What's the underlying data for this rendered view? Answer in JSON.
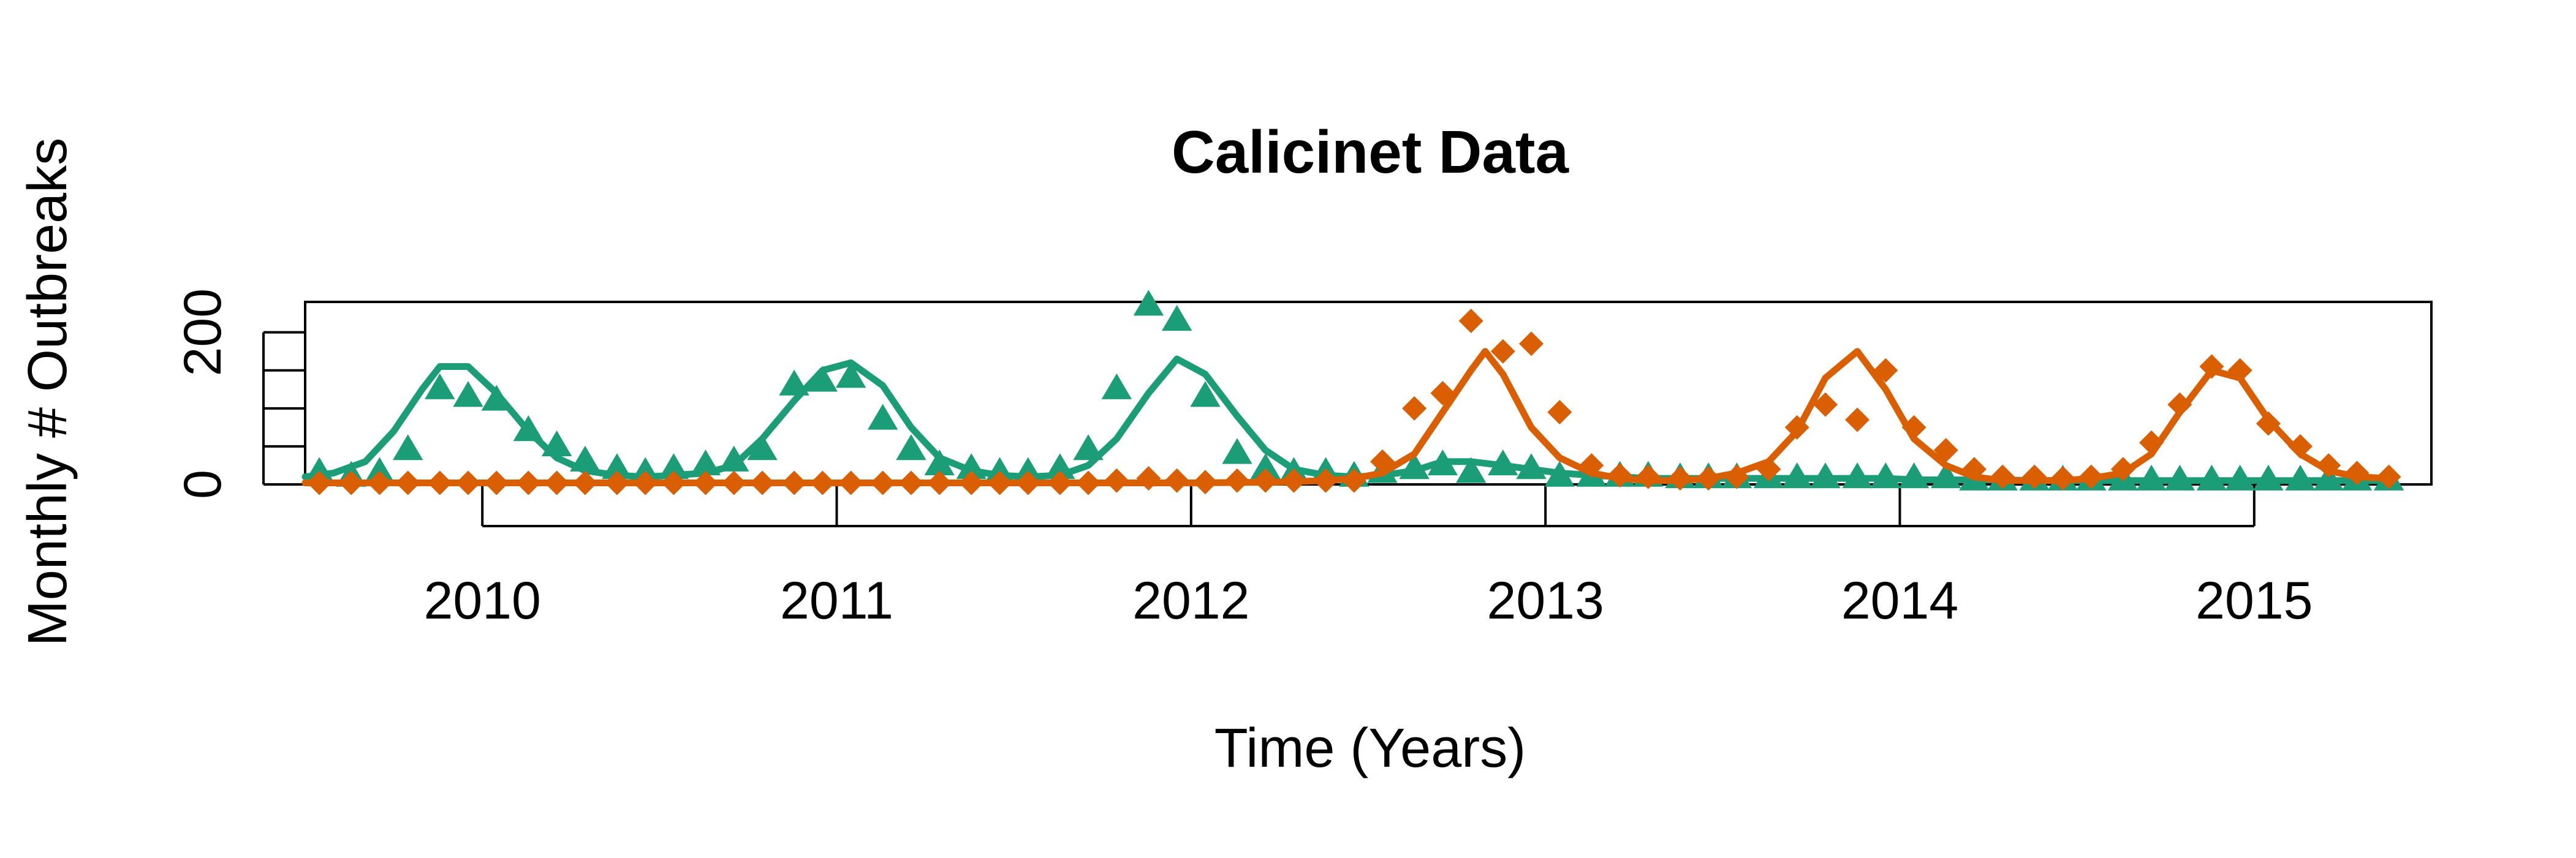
{
  "chart_data": {
    "type": "line",
    "title": "Calicinet Data",
    "xlabel": "Time (Years)",
    "ylabel": "Monthly # Outbreaks",
    "xlim": [
      2009.5,
      2015.5
    ],
    "ylim": [
      0,
      240
    ],
    "x_ticks": [
      2010,
      2011,
      2012,
      2013,
      2014,
      2015
    ],
    "y_ticks": [
      0,
      50,
      100,
      150,
      200
    ],
    "y_tick_labels": [
      "0",
      "",
      "",
      "",
      "200"
    ],
    "grid": false,
    "legend": null,
    "series": [
      {
        "color": "#1b9e77",
        "marker": "triangle",
        "observed": {
          "x": [
            2009.54,
            2009.63,
            2009.71,
            2009.79,
            2009.88,
            2009.96,
            2010.04,
            2010.13,
            2010.21,
            2010.29,
            2010.38,
            2010.46,
            2010.54,
            2010.63,
            2010.71,
            2010.79,
            2010.88,
            2010.96,
            2011.04,
            2011.13,
            2011.21,
            2011.29,
            2011.38,
            2011.46,
            2011.54,
            2011.63,
            2011.71,
            2011.79,
            2011.88,
            2011.96,
            2012.04,
            2012.13,
            2012.21,
            2012.29,
            2012.38,
            2012.46,
            2012.54,
            2012.63,
            2012.71,
            2012.79,
            2012.88,
            2012.96,
            2013.04,
            2013.13,
            2013.21,
            2013.29,
            2013.38,
            2013.46,
            2013.54,
            2013.63,
            2013.71,
            2013.79,
            2013.88,
            2013.96,
            2014.04,
            2014.13,
            2014.21,
            2014.29,
            2014.38,
            2014.46,
            2014.54,
            2014.63,
            2014.71,
            2014.79,
            2014.88,
            2014.96,
            2015.04,
            2015.13,
            2015.21,
            2015.29,
            2015.38
          ],
          "y": [
            15,
            10,
            15,
            45,
            125,
            115,
            110,
            70,
            50,
            30,
            20,
            15,
            20,
            25,
            30,
            45,
            130,
            135,
            140,
            85,
            45,
            25,
            20,
            15,
            15,
            20,
            45,
            125,
            235,
            215,
            115,
            40,
            20,
            15,
            15,
            10,
            15,
            20,
            25,
            15,
            25,
            20,
            10,
            10,
            10,
            10,
            8,
            8,
            8,
            8,
            8,
            8,
            8,
            8,
            8,
            8,
            5,
            5,
            5,
            5,
            5,
            5,
            5,
            5,
            5,
            5,
            5,
            5,
            5,
            5,
            5
          ]
        },
        "fitted": {
          "x": [
            2009.5,
            2009.58,
            2009.67,
            2009.75,
            2009.83,
            2009.88,
            2009.96,
            2010.04,
            2010.13,
            2010.21,
            2010.29,
            2010.38,
            2010.46,
            2010.54,
            2010.63,
            2010.71,
            2010.79,
            2010.88,
            2010.96,
            2011.04,
            2011.13,
            2011.21,
            2011.29,
            2011.38,
            2011.46,
            2011.54,
            2011.63,
            2011.71,
            2011.79,
            2011.88,
            2011.96,
            2012.04,
            2012.13,
            2012.21,
            2012.29,
            2012.38,
            2012.46,
            2012.54,
            2012.63,
            2012.71,
            2012.79,
            2012.88,
            2012.96,
            2013.04,
            2013.13,
            2013.21,
            2013.29,
            2013.38,
            2013.46,
            2013.54,
            2013.63,
            2013.71,
            2013.79,
            2013.88,
            2013.96,
            2014.04,
            2014.13,
            2014.21,
            2014.29,
            2014.38,
            2014.46,
            2014.54,
            2014.63,
            2014.71,
            2014.79,
            2014.88,
            2014.96,
            2015.04,
            2015.13,
            2015.21,
            2015.29,
            2015.38
          ],
          "y": [
            10,
            15,
            30,
            70,
            125,
            155,
            155,
            120,
            70,
            35,
            18,
            12,
            10,
            12,
            15,
            25,
            60,
            110,
            150,
            160,
            130,
            75,
            35,
            18,
            12,
            10,
            12,
            25,
            60,
            120,
            165,
            145,
            90,
            45,
            20,
            12,
            10,
            12,
            18,
            30,
            30,
            25,
            20,
            15,
            12,
            10,
            8,
            8,
            8,
            8,
            8,
            8,
            8,
            8,
            8,
            6,
            6,
            6,
            6,
            5,
            5,
            5,
            5,
            5,
            5,
            5,
            5,
            5,
            5,
            5,
            5,
            5
          ]
        }
      },
      {
        "color": "#d95f02",
        "marker": "diamond",
        "observed": {
          "x": [
            2009.54,
            2009.63,
            2009.71,
            2009.79,
            2009.88,
            2009.96,
            2010.04,
            2010.13,
            2010.21,
            2010.29,
            2010.38,
            2010.46,
            2010.54,
            2010.63,
            2010.71,
            2010.79,
            2010.88,
            2010.96,
            2011.04,
            2011.13,
            2011.21,
            2011.29,
            2011.38,
            2011.46,
            2011.54,
            2011.63,
            2011.71,
            2011.79,
            2011.88,
            2011.96,
            2012.04,
            2012.13,
            2012.21,
            2012.29,
            2012.38,
            2012.46,
            2012.54,
            2012.63,
            2012.71,
            2012.79,
            2012.88,
            2012.96,
            2013.04,
            2013.13,
            2013.21,
            2013.29,
            2013.38,
            2013.46,
            2013.54,
            2013.63,
            2013.71,
            2013.79,
            2013.88,
            2013.96,
            2014.04,
            2014.13,
            2014.21,
            2014.29,
            2014.38,
            2014.46,
            2014.54,
            2014.63,
            2014.71,
            2014.79,
            2014.88,
            2014.96,
            2015.04,
            2015.13,
            2015.21,
            2015.29,
            2015.38
          ],
          "y": [
            2,
            2,
            2,
            2,
            2,
            2,
            2,
            2,
            2,
            2,
            2,
            2,
            2,
            2,
            2,
            2,
            2,
            2,
            2,
            2,
            2,
            2,
            2,
            2,
            2,
            2,
            2,
            5,
            8,
            5,
            3,
            5,
            5,
            5,
            5,
            5,
            30,
            100,
            120,
            215,
            175,
            185,
            95,
            25,
            12,
            10,
            8,
            8,
            10,
            20,
            75,
            105,
            85,
            150,
            75,
            45,
            20,
            10,
            10,
            8,
            10,
            20,
            55,
            105,
            155,
            150,
            80,
            50,
            25,
            15,
            10
          ]
        },
        "fitted": {
          "x": [
            2009.5,
            2009.75,
            2010.0,
            2010.25,
            2010.5,
            2010.75,
            2011.0,
            2011.25,
            2011.5,
            2011.75,
            2012.0,
            2012.25,
            2012.38,
            2012.46,
            2012.54,
            2012.63,
            2012.71,
            2012.79,
            2012.83,
            2012.88,
            2012.96,
            2013.04,
            2013.13,
            2013.21,
            2013.29,
            2013.38,
            2013.46,
            2013.54,
            2013.63,
            2013.71,
            2013.79,
            2013.88,
            2013.96,
            2014.04,
            2014.13,
            2014.21,
            2014.29,
            2014.38,
            2014.46,
            2014.54,
            2014.63,
            2014.71,
            2014.79,
            2014.88,
            2014.96,
            2015.04,
            2015.13,
            2015.21,
            2015.29,
            2015.38
          ],
          "y": [
            2,
            2,
            2,
            2,
            2,
            2,
            2,
            2,
            2,
            2,
            2,
            3,
            5,
            8,
            15,
            40,
            95,
            150,
            175,
            145,
            75,
            35,
            15,
            8,
            5,
            5,
            8,
            15,
            30,
            70,
            140,
            175,
            125,
            60,
            25,
            10,
            5,
            5,
            5,
            8,
            15,
            40,
            95,
            150,
            140,
            85,
            40,
            18,
            10,
            8
          ]
        }
      }
    ]
  }
}
